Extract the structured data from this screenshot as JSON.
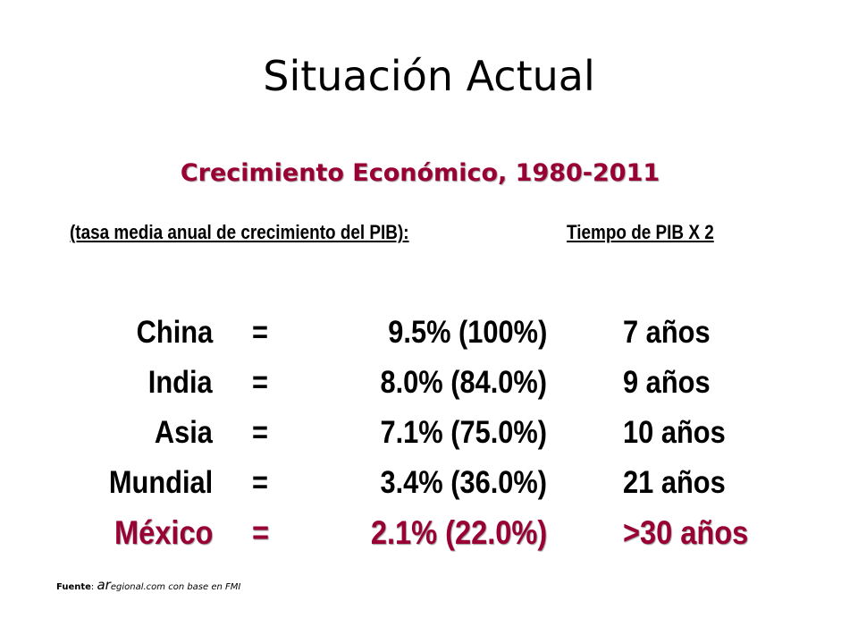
{
  "slide": {
    "title": "Situación Actual",
    "subtitle": "Crecimiento Económico, 1980-2011",
    "header_left": "(tasa media anual de crecimiento del PIB):",
    "header_right": "Tiempo de PIB X 2",
    "rows": [
      {
        "country": "China",
        "eq": "=",
        "rate": "9.5% (100%)",
        "time": "7 años"
      },
      {
        "country": "India",
        "eq": "=",
        "rate": "8.0% (84.0%)",
        "time": "9 años"
      },
      {
        "country": "Asia",
        "eq": "=",
        "rate": "7.1% (75.0%)",
        "time": "10 años"
      },
      {
        "country": "Mundial",
        "eq": "=",
        "rate": "3.4% (36.0%)",
        "time": "21 años"
      },
      {
        "country": "México",
        "eq": "=",
        "rate": "2.1% (22.0%)",
        "time": ">30 años"
      }
    ],
    "source": {
      "label": "Fuente",
      "colon": ": ",
      "brand": "ar",
      "rest": "egional.com con base en FMI"
    },
    "colors": {
      "accent": "#990033",
      "text": "#000000",
      "background": "#ffffff"
    }
  }
}
